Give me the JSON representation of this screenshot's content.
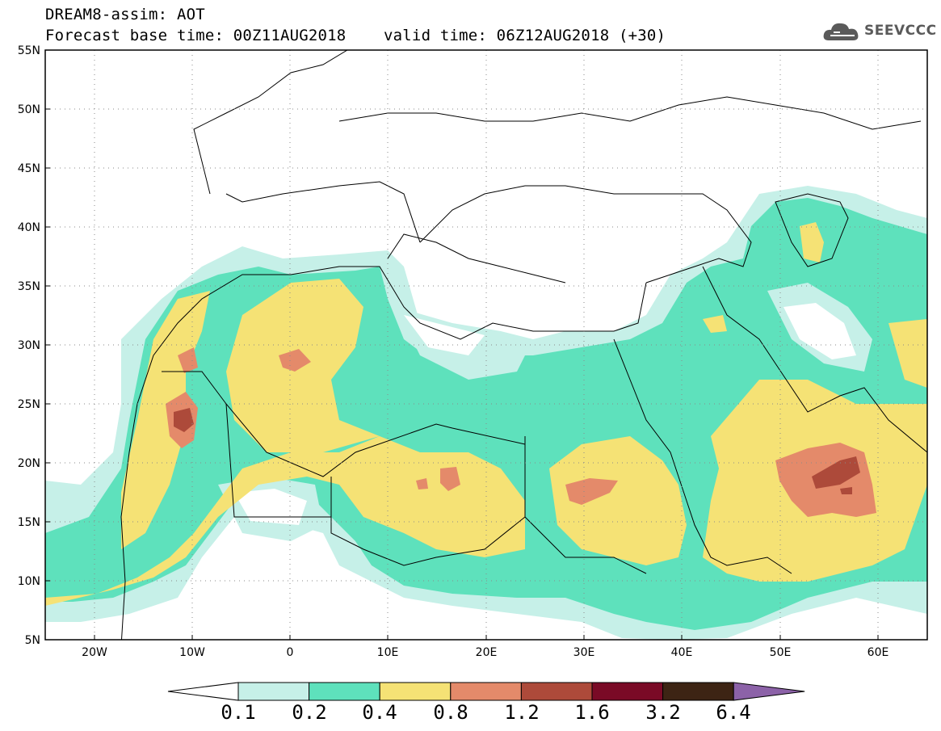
{
  "header": {
    "title_line1": "DREAM8-assim: AOT",
    "base_time_label": "Forecast base time: 00Z11AUG2018",
    "valid_time_label": "valid time: 06Z12AUG2018 (+30)"
  },
  "logo": {
    "text": "SEEVCCC",
    "icon": "cloud-icon"
  },
  "map": {
    "lat_ticks": [
      "55N",
      "50N",
      "45N",
      "40N",
      "35N",
      "30N",
      "25N",
      "20N",
      "15N",
      "10N",
      "5N"
    ],
    "lon_ticks": [
      "20W",
      "10W",
      "0",
      "10E",
      "20E",
      "30E",
      "40E",
      "50E",
      "60E"
    ],
    "lon_range": [
      -25,
      65
    ],
    "lat_range": [
      5,
      55
    ]
  },
  "colorbar": {
    "labels": [
      "0.1",
      "0.2",
      "0.4",
      "0.8",
      "1.2",
      "1.6",
      "3.2",
      "6.4"
    ],
    "colors": [
      "#ffffff",
      "#c6f0e8",
      "#5ee1bc",
      "#f5e275",
      "#e48a6a",
      "#ad4a3a",
      "#7a0a26",
      "#3d2414",
      "#8c62a8"
    ]
  }
}
